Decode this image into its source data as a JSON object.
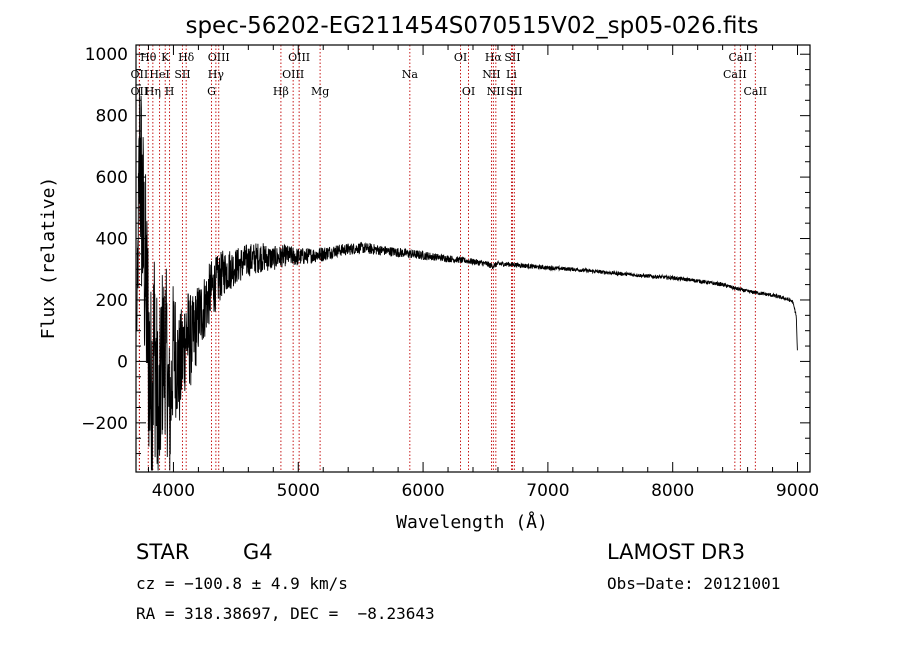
{
  "chart_data": {
    "type": "line",
    "title": "spec-56202-EG211454S070515V02_sp05-026.fits",
    "xlabel": "Wavelength (Å)",
    "ylabel": "Flux (relative)",
    "xlim": [
      3700,
      9100
    ],
    "ylim": [
      -360,
      1030
    ],
    "xticks": [
      4000,
      5000,
      6000,
      7000,
      8000,
      9000
    ],
    "yticks": [
      -200,
      0,
      200,
      400,
      600,
      800,
      1000
    ],
    "series": [
      {
        "name": "flux",
        "x": [
          3700,
          3730,
          3760,
          3790,
          3820,
          3850,
          3880,
          3910,
          3940,
          3970,
          4000,
          4050,
          4100,
          4150,
          4200,
          4250,
          4300,
          4350,
          4400,
          4450,
          4500,
          4600,
          4700,
          4800,
          4900,
          5000,
          5100,
          5200,
          5300,
          5400,
          5500,
          5600,
          5700,
          5800,
          5900,
          6000,
          6100,
          6200,
          6300,
          6400,
          6500,
          6560,
          6600,
          6700,
          6800,
          6900,
          7000,
          7200,
          7400,
          7600,
          7800,
          8000,
          8200,
          8400,
          8500,
          8600,
          8700,
          8800,
          8900,
          8960,
          8990,
          9000
        ],
        "values": [
          -40,
          700,
          380,
          150,
          -120,
          80,
          -250,
          20,
          50,
          -200,
          60,
          -40,
          90,
          60,
          140,
          180,
          230,
          260,
          290,
          300,
          310,
          330,
          340,
          335,
          345,
          340,
          345,
          350,
          360,
          365,
          370,
          365,
          360,
          355,
          350,
          345,
          340,
          335,
          330,
          325,
          318,
          310,
          318,
          316,
          312,
          308,
          305,
          300,
          292,
          285,
          278,
          272,
          262,
          250,
          238,
          228,
          222,
          215,
          205,
          195,
          150,
          20
        ],
        "noise": [
          0,
          380,
          380,
          380,
          380,
          380,
          320,
          300,
          280,
          260,
          220,
          190,
          170,
          150,
          120,
          110,
          100,
          85,
          75,
          70,
          60,
          55,
          50,
          40,
          35,
          30,
          25,
          25,
          20,
          20,
          18,
          18,
          16,
          16,
          15,
          15,
          12,
          12,
          10,
          10,
          10,
          10,
          8,
          8,
          8,
          7,
          7,
          6,
          6,
          6,
          6,
          6,
          6,
          6,
          6,
          6,
          6,
          6,
          6,
          6,
          6,
          6
        ]
      }
    ],
    "line_markers": [
      {
        "label": "Hθ",
        "wavelength": 3798,
        "row": 1
      },
      {
        "label": "OII",
        "wavelength": 3727,
        "row": 2
      },
      {
        "label": "OII",
        "wavelength": 3727,
        "row": 3
      },
      {
        "label": "K",
        "wavelength": 3934,
        "row": 1
      },
      {
        "label": "HeI",
        "wavelength": 3889,
        "row": 2
      },
      {
        "label": "Hη",
        "wavelength": 3835,
        "row": 3
      },
      {
        "label": "H",
        "wavelength": 3969,
        "row": 3
      },
      {
        "label": "SII",
        "wavelength": 4072,
        "row": 2
      },
      {
        "label": "Hδ",
        "wavelength": 4102,
        "row": 1
      },
      {
        "label": "OIII",
        "wavelength": 4363,
        "row": 1
      },
      {
        "label": "Hγ",
        "wavelength": 4340,
        "row": 2
      },
      {
        "label": "G",
        "wavelength": 4305,
        "row": 3
      },
      {
        "label": "Hβ",
        "wavelength": 4861,
        "row": 3
      },
      {
        "label": "OIII",
        "wavelength": 5007,
        "row": 1
      },
      {
        "label": "OIII",
        "wavelength": 4959,
        "row": 2
      },
      {
        "label": "Mg",
        "wavelength": 5175,
        "row": 3
      },
      {
        "label": "Na",
        "wavelength": 5894,
        "row": 2
      },
      {
        "label": "OI",
        "wavelength": 6300,
        "row": 1
      },
      {
        "label": "OI",
        "wavelength": 6364,
        "row": 3
      },
      {
        "label": "Hα",
        "wavelength": 6563,
        "row": 1
      },
      {
        "label": "NII",
        "wavelength": 6548,
        "row": 2
      },
      {
        "label": "NII",
        "wavelength": 6583,
        "row": 3
      },
      {
        "label": "SII",
        "wavelength": 6716,
        "row": 1
      },
      {
        "label": "Li",
        "wavelength": 6708,
        "row": 2
      },
      {
        "label": "SII",
        "wavelength": 6731,
        "row": 3
      },
      {
        "label": "CaII",
        "wavelength": 8542,
        "row": 1
      },
      {
        "label": "CaII",
        "wavelength": 8498,
        "row": 2
      },
      {
        "label": "CaII",
        "wavelength": 8662,
        "row": 3
      }
    ]
  },
  "info": {
    "class": "STAR",
    "subclass": "G4",
    "survey": "LAMOST DR3",
    "cz": "cz = −100.8 ± 4.9 km/s",
    "obs_date": "Obs−Date: 20121001",
    "radec": "RA = 318.38697, DEC =  −8.23643"
  }
}
